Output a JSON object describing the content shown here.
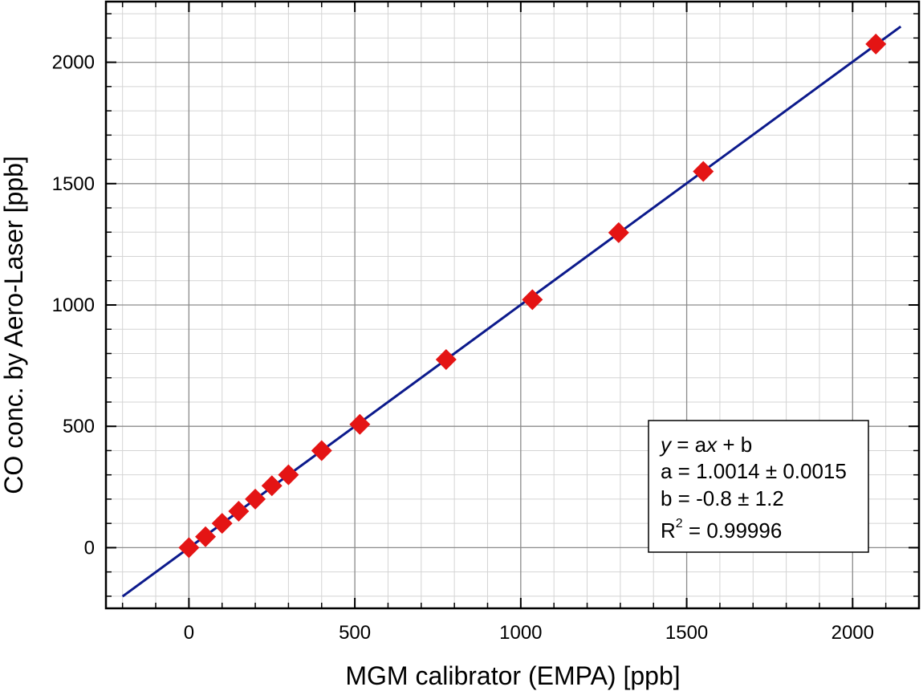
{
  "chart_data": {
    "type": "scatter",
    "title": "",
    "xlabel": "MGM calibrator (EMPA) [ppb]",
    "ylabel": "CO conc. by Aero-Laser [ppb]",
    "xlim": [
      -250,
      2200
    ],
    "ylim": [
      -250,
      2250
    ],
    "xticks": [
      0,
      500,
      1000,
      1500,
      2000
    ],
    "yticks": [
      0,
      500,
      1000,
      1500,
      2000
    ],
    "xtick_labels": [
      "0",
      "500",
      "1000",
      "1500",
      "2000"
    ],
    "ytick_labels": [
      "0",
      "500",
      "1000",
      "1500",
      "2000"
    ],
    "minor_x_step": 100,
    "minor_y_step": 100,
    "grid": true,
    "marker": "diamond",
    "marker_color": "#e41414",
    "line_color": "#0c1a8c",
    "series": [
      {
        "x": [
          0,
          50,
          100,
          150,
          200,
          250,
          300,
          400,
          515,
          775,
          1035,
          1295,
          1550,
          2070
        ],
        "y": [
          0,
          45,
          100,
          150,
          200,
          255,
          300,
          400,
          508,
          775,
          1022,
          1298,
          1550,
          2075
        ]
      }
    ],
    "fit": {
      "slope": 1.0014,
      "intercept": -0.8,
      "x_range": [
        -200,
        2145
      ]
    },
    "annotation": {
      "equation_y": "y",
      "equation_mid": " = a",
      "equation_x": "x",
      "equation_end": " + b",
      "a_line": "a = 1.0014 ± 0.0015",
      "b_line": "b = -0.8 ± 1.2",
      "r2_prefix": "R",
      "r2_sup": "2",
      "r2_value": " = 0.99996",
      "placement": "bottom-right"
    }
  }
}
